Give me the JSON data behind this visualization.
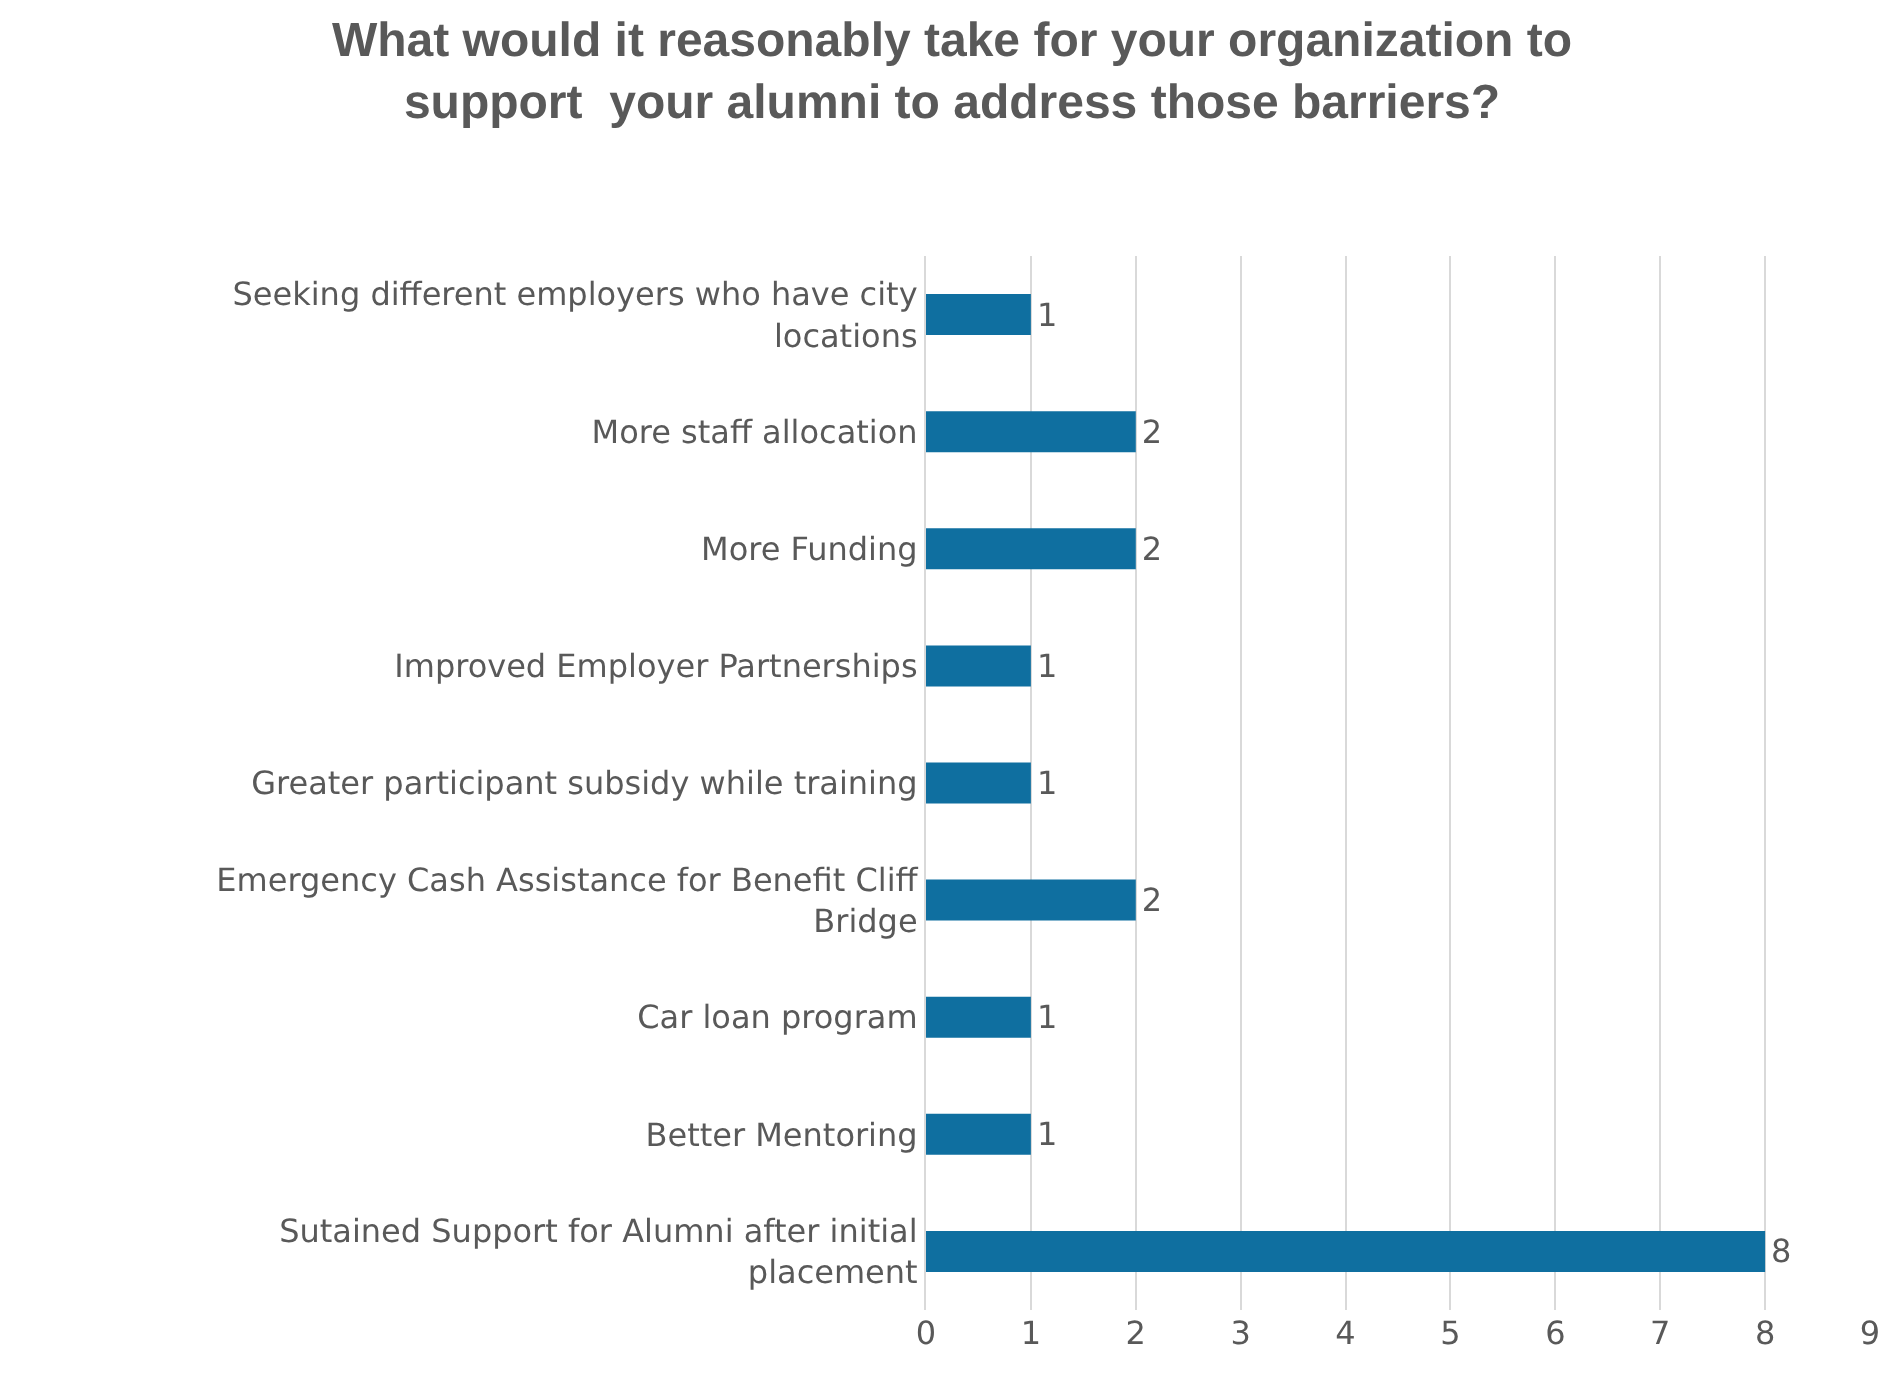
{
  "chart_data": {
    "type": "bar",
    "orientation": "horizontal",
    "title": "What would it reasonably take for your organization to\nsupport  your alumni to address those barriers?",
    "categories": [
      "Seeking different employers who have city locations",
      "More staff allocation",
      "More Funding",
      "Improved Employer Partnerships",
      "Greater participant subsidy while training",
      "Emergency Cash Assistance for Benefit Cliff Bridge",
      "Car loan program",
      "Better Mentoring",
      "Sutained Support for Alumni after initial placement"
    ],
    "values": [
      1,
      2,
      2,
      1,
      1,
      2,
      1,
      1,
      8
    ],
    "color": "#0f6fa0",
    "xlim": [
      0,
      9
    ],
    "xticks": [
      0,
      1,
      2,
      3,
      4,
      5,
      6,
      7,
      8,
      9
    ],
    "grid": "x",
    "data_labels": true
  }
}
